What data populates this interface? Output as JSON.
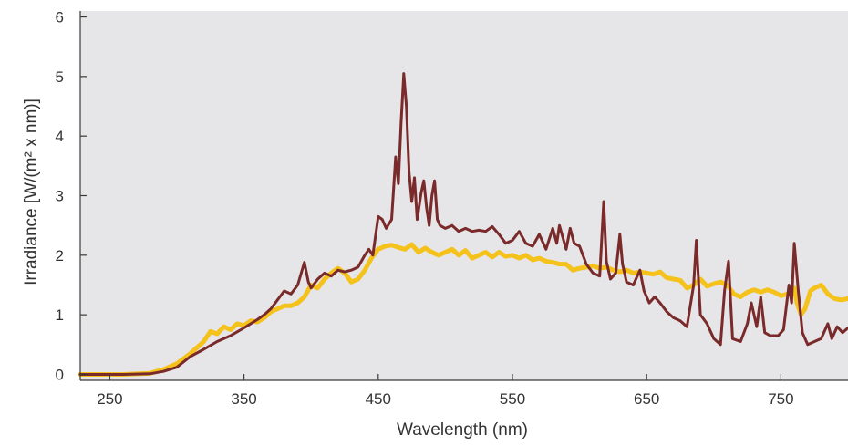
{
  "chart_data": {
    "type": "line",
    "xlabel": "Wavelength (nm)",
    "ylabel": "Irradiance [W/(m² x nm)]",
    "xlim": [
      228,
      800
    ],
    "ylim": [
      -0.1,
      6.1
    ],
    "x_ticks": [
      250,
      350,
      450,
      550,
      650,
      750
    ],
    "y_ticks": [
      0,
      1,
      2,
      3,
      4,
      5,
      6
    ],
    "grid": false,
    "legend": "none",
    "colors": {
      "plot_background": "#e6e6e8",
      "axis": "#3a3a3a"
    },
    "series": [
      {
        "color": "#f4c21a",
        "points": [
          [
            228,
            0.0
          ],
          [
            260,
            0.0
          ],
          [
            280,
            0.02
          ],
          [
            290,
            0.08
          ],
          [
            300,
            0.18
          ],
          [
            310,
            0.35
          ],
          [
            320,
            0.55
          ],
          [
            325,
            0.72
          ],
          [
            330,
            0.68
          ],
          [
            335,
            0.8
          ],
          [
            340,
            0.75
          ],
          [
            345,
            0.85
          ],
          [
            350,
            0.82
          ],
          [
            355,
            0.9
          ],
          [
            360,
            0.88
          ],
          [
            365,
            0.95
          ],
          [
            370,
            1.05
          ],
          [
            375,
            1.1
          ],
          [
            380,
            1.15
          ],
          [
            385,
            1.15
          ],
          [
            390,
            1.2
          ],
          [
            395,
            1.3
          ],
          [
            400,
            1.5
          ],
          [
            405,
            1.45
          ],
          [
            410,
            1.6
          ],
          [
            415,
            1.7
          ],
          [
            420,
            1.78
          ],
          [
            425,
            1.7
          ],
          [
            430,
            1.55
          ],
          [
            435,
            1.6
          ],
          [
            440,
            1.75
          ],
          [
            445,
            1.95
          ],
          [
            450,
            2.1
          ],
          [
            455,
            2.15
          ],
          [
            460,
            2.17
          ],
          [
            465,
            2.13
          ],
          [
            470,
            2.1
          ],
          [
            475,
            2.18
          ],
          [
            480,
            2.05
          ],
          [
            485,
            2.12
          ],
          [
            490,
            2.05
          ],
          [
            495,
            2.0
          ],
          [
            500,
            2.05
          ],
          [
            505,
            2.1
          ],
          [
            510,
            2.0
          ],
          [
            515,
            2.08
          ],
          [
            520,
            1.95
          ],
          [
            525,
            2.0
          ],
          [
            530,
            2.05
          ],
          [
            535,
            1.97
          ],
          [
            540,
            2.05
          ],
          [
            545,
            1.98
          ],
          [
            550,
            2.0
          ],
          [
            555,
            1.95
          ],
          [
            560,
            2.0
          ],
          [
            565,
            1.92
          ],
          [
            570,
            1.95
          ],
          [
            575,
            1.9
          ],
          [
            580,
            1.88
          ],
          [
            585,
            1.85
          ],
          [
            590,
            1.85
          ],
          [
            595,
            1.75
          ],
          [
            600,
            1.78
          ],
          [
            605,
            1.8
          ],
          [
            610,
            1.82
          ],
          [
            615,
            1.78
          ],
          [
            620,
            1.8
          ],
          [
            625,
            1.75
          ],
          [
            630,
            1.72
          ],
          [
            635,
            1.75
          ],
          [
            640,
            1.7
          ],
          [
            645,
            1.72
          ],
          [
            650,
            1.7
          ],
          [
            655,
            1.68
          ],
          [
            660,
            1.72
          ],
          [
            665,
            1.62
          ],
          [
            670,
            1.6
          ],
          [
            675,
            1.58
          ],
          [
            680,
            1.45
          ],
          [
            685,
            1.5
          ],
          [
            690,
            1.6
          ],
          [
            695,
            1.48
          ],
          [
            700,
            1.52
          ],
          [
            705,
            1.55
          ],
          [
            710,
            1.5
          ],
          [
            715,
            1.35
          ],
          [
            720,
            1.3
          ],
          [
            725,
            1.38
          ],
          [
            730,
            1.42
          ],
          [
            735,
            1.38
          ],
          [
            740,
            1.42
          ],
          [
            745,
            1.38
          ],
          [
            750,
            1.32
          ],
          [
            755,
            1.35
          ],
          [
            760,
            1.45
          ],
          [
            762,
            1.2
          ],
          [
            765,
            1.0
          ],
          [
            768,
            1.1
          ],
          [
            772,
            1.4
          ],
          [
            775,
            1.45
          ],
          [
            780,
            1.5
          ],
          [
            785,
            1.35
          ],
          [
            790,
            1.27
          ],
          [
            795,
            1.25
          ],
          [
            800,
            1.27
          ]
        ]
      },
      {
        "color": "#7a2a2a",
        "points": [
          [
            228,
            0.0
          ],
          [
            260,
            0.0
          ],
          [
            280,
            0.01
          ],
          [
            290,
            0.05
          ],
          [
            300,
            0.12
          ],
          [
            310,
            0.3
          ],
          [
            320,
            0.42
          ],
          [
            330,
            0.55
          ],
          [
            340,
            0.65
          ],
          [
            350,
            0.78
          ],
          [
            360,
            0.92
          ],
          [
            365,
            1.0
          ],
          [
            370,
            1.1
          ],
          [
            375,
            1.25
          ],
          [
            380,
            1.4
          ],
          [
            385,
            1.35
          ],
          [
            390,
            1.5
          ],
          [
            395,
            1.88
          ],
          [
            398,
            1.55
          ],
          [
            400,
            1.45
          ],
          [
            405,
            1.6
          ],
          [
            410,
            1.7
          ],
          [
            415,
            1.65
          ],
          [
            420,
            1.75
          ],
          [
            425,
            1.72
          ],
          [
            430,
            1.75
          ],
          [
            435,
            1.8
          ],
          [
            440,
            2.0
          ],
          [
            443,
            2.1
          ],
          [
            446,
            2.0
          ],
          [
            450,
            2.65
          ],
          [
            453,
            2.6
          ],
          [
            456,
            2.45
          ],
          [
            460,
            2.6
          ],
          [
            463,
            3.65
          ],
          [
            465,
            3.2
          ],
          [
            467,
            4.2
          ],
          [
            469,
            5.05
          ],
          [
            471,
            4.5
          ],
          [
            473,
            3.4
          ],
          [
            475,
            2.9
          ],
          [
            477,
            3.3
          ],
          [
            479,
            2.6
          ],
          [
            482,
            3.05
          ],
          [
            484,
            3.25
          ],
          [
            486,
            2.8
          ],
          [
            488,
            2.5
          ],
          [
            490,
            3.0
          ],
          [
            492,
            3.25
          ],
          [
            494,
            2.6
          ],
          [
            496,
            2.5
          ],
          [
            500,
            2.45
          ],
          [
            505,
            2.5
          ],
          [
            510,
            2.4
          ],
          [
            515,
            2.45
          ],
          [
            520,
            2.4
          ],
          [
            525,
            2.42
          ],
          [
            530,
            2.4
          ],
          [
            535,
            2.48
          ],
          [
            540,
            2.35
          ],
          [
            545,
            2.2
          ],
          [
            550,
            2.25
          ],
          [
            555,
            2.4
          ],
          [
            560,
            2.2
          ],
          [
            565,
            2.15
          ],
          [
            570,
            2.35
          ],
          [
            575,
            2.1
          ],
          [
            580,
            2.45
          ],
          [
            583,
            2.2
          ],
          [
            585,
            2.5
          ],
          [
            590,
            2.1
          ],
          [
            593,
            2.45
          ],
          [
            596,
            2.2
          ],
          [
            600,
            2.15
          ],
          [
            605,
            1.85
          ],
          [
            610,
            1.7
          ],
          [
            615,
            1.65
          ],
          [
            618,
            2.9
          ],
          [
            620,
            1.9
          ],
          [
            623,
            1.6
          ],
          [
            627,
            1.7
          ],
          [
            630,
            2.35
          ],
          [
            632,
            1.85
          ],
          [
            635,
            1.55
          ],
          [
            640,
            1.5
          ],
          [
            645,
            1.75
          ],
          [
            648,
            1.4
          ],
          [
            652,
            1.2
          ],
          [
            656,
            1.3
          ],
          [
            660,
            1.2
          ],
          [
            665,
            1.05
          ],
          [
            670,
            0.95
          ],
          [
            675,
            0.9
          ],
          [
            680,
            0.8
          ],
          [
            685,
            1.5
          ],
          [
            687,
            2.25
          ],
          [
            690,
            1.0
          ],
          [
            695,
            0.85
          ],
          [
            700,
            0.6
          ],
          [
            705,
            0.5
          ],
          [
            708,
            1.4
          ],
          [
            711,
            1.9
          ],
          [
            714,
            0.6
          ],
          [
            720,
            0.55
          ],
          [
            725,
            0.85
          ],
          [
            728,
            1.2
          ],
          [
            732,
            0.8
          ],
          [
            735,
            1.3
          ],
          [
            738,
            0.7
          ],
          [
            742,
            0.65
          ],
          [
            748,
            0.65
          ],
          [
            752,
            0.75
          ],
          [
            756,
            1.5
          ],
          [
            758,
            1.2
          ],
          [
            760,
            2.2
          ],
          [
            763,
            1.4
          ],
          [
            766,
            0.7
          ],
          [
            770,
            0.5
          ],
          [
            775,
            0.55
          ],
          [
            780,
            0.6
          ],
          [
            785,
            0.85
          ],
          [
            788,
            0.6
          ],
          [
            792,
            0.8
          ],
          [
            796,
            0.7
          ],
          [
            800,
            0.78
          ]
        ]
      }
    ]
  }
}
